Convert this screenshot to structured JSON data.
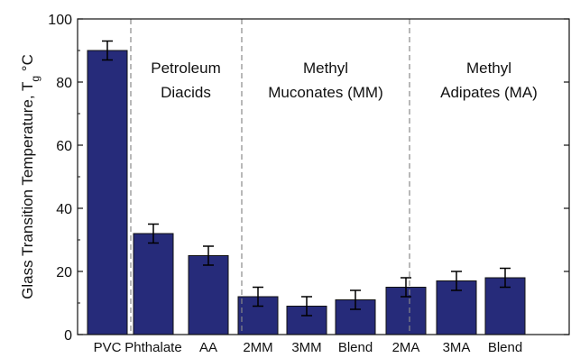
{
  "chart_data": {
    "type": "bar",
    "title": "",
    "xlabel": "",
    "ylabel": "Glass Transition Temperature, T",
    "ylabel_sub": "g",
    "ylabel_unit": " °C",
    "ylim": [
      0,
      100
    ],
    "yticks": [
      0,
      20,
      40,
      60,
      80,
      100
    ],
    "grid": false,
    "legend": "none",
    "bar_color": "#262b7a",
    "categories": [
      "PVC",
      "Phthalate",
      "AA",
      "2MM",
      "3MM",
      "Blend",
      "2MA",
      "3MA",
      "Blend"
    ],
    "values": [
      90,
      32,
      25,
      12,
      9,
      11,
      15,
      17,
      18
    ],
    "errors": [
      3,
      3,
      3,
      3,
      3,
      3,
      3,
      3,
      3
    ],
    "group_labels": [
      {
        "lines": [
          "Petroleum",
          "Diacids"
        ]
      },
      {
        "lines": [
          "Methyl",
          "Muconates (MM)"
        ]
      },
      {
        "lines": [
          "Methyl",
          "Adipates (MA)"
        ]
      }
    ]
  }
}
